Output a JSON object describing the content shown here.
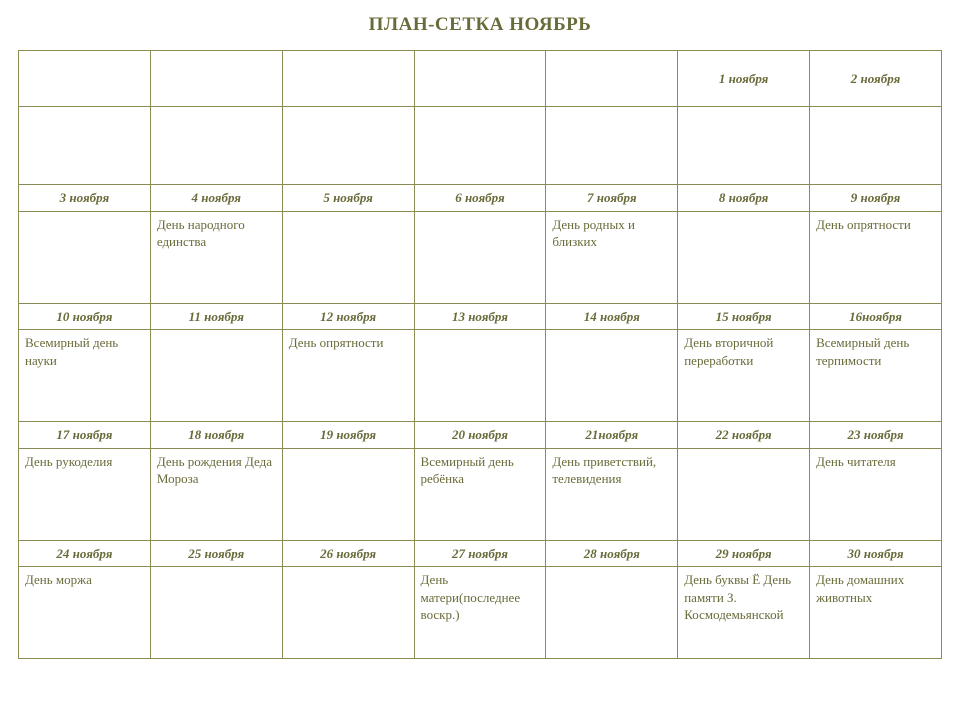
{
  "title": "ПЛАН-СЕТКА НОЯБРЬ",
  "colors": {
    "text": "#6a6b3a",
    "border": "#8a8b55",
    "background": "#ffffff"
  },
  "columns": 7,
  "weeks": [
    {
      "dates": [
        "",
        "",
        "",
        "",
        "",
        "1 ноября",
        "2 ноября"
      ],
      "events": [
        "",
        "",
        "",
        "",
        "",
        "",
        ""
      ]
    },
    {
      "dates": [
        "3 ноября",
        "4 ноября",
        "5 ноября",
        "6 ноября",
        "7 ноября",
        "8 ноября",
        "9 ноября"
      ],
      "events": [
        "",
        "День народного единства",
        "",
        "",
        "День родных и близких",
        "",
        "День опрятности"
      ]
    },
    {
      "dates": [
        "10 ноября",
        "11 ноября",
        "12 ноября",
        "13 ноября",
        "14 ноября",
        "15 ноября",
        "16ноября"
      ],
      "events": [
        "Всемирный день науки",
        "",
        "День опрятности",
        "",
        "",
        "День вторичной переработки",
        "Всемирный день терпимости"
      ]
    },
    {
      "dates": [
        "17 ноября",
        "18 ноября",
        "19 ноября",
        "20 ноября",
        "21ноября",
        "22 ноября",
        "23 ноября"
      ],
      "events": [
        "День рукоделия",
        "День рождения Деда Мороза",
        "",
        "Всемирный день ребёнка",
        "День приветствий, телевидения",
        "",
        "День читателя"
      ]
    },
    {
      "dates": [
        "24 ноября",
        "25 ноября",
        "26 ноября",
        "27 ноября",
        "28 ноября",
        "29 ноября",
        "30 ноября"
      ],
      "events": [
        "День моржа",
        "",
        "",
        "День матери(последнее воскр.)",
        "",
        "День буквы Ё День памяти З. Космодемьянской",
        "День домашних животных"
      ]
    }
  ]
}
